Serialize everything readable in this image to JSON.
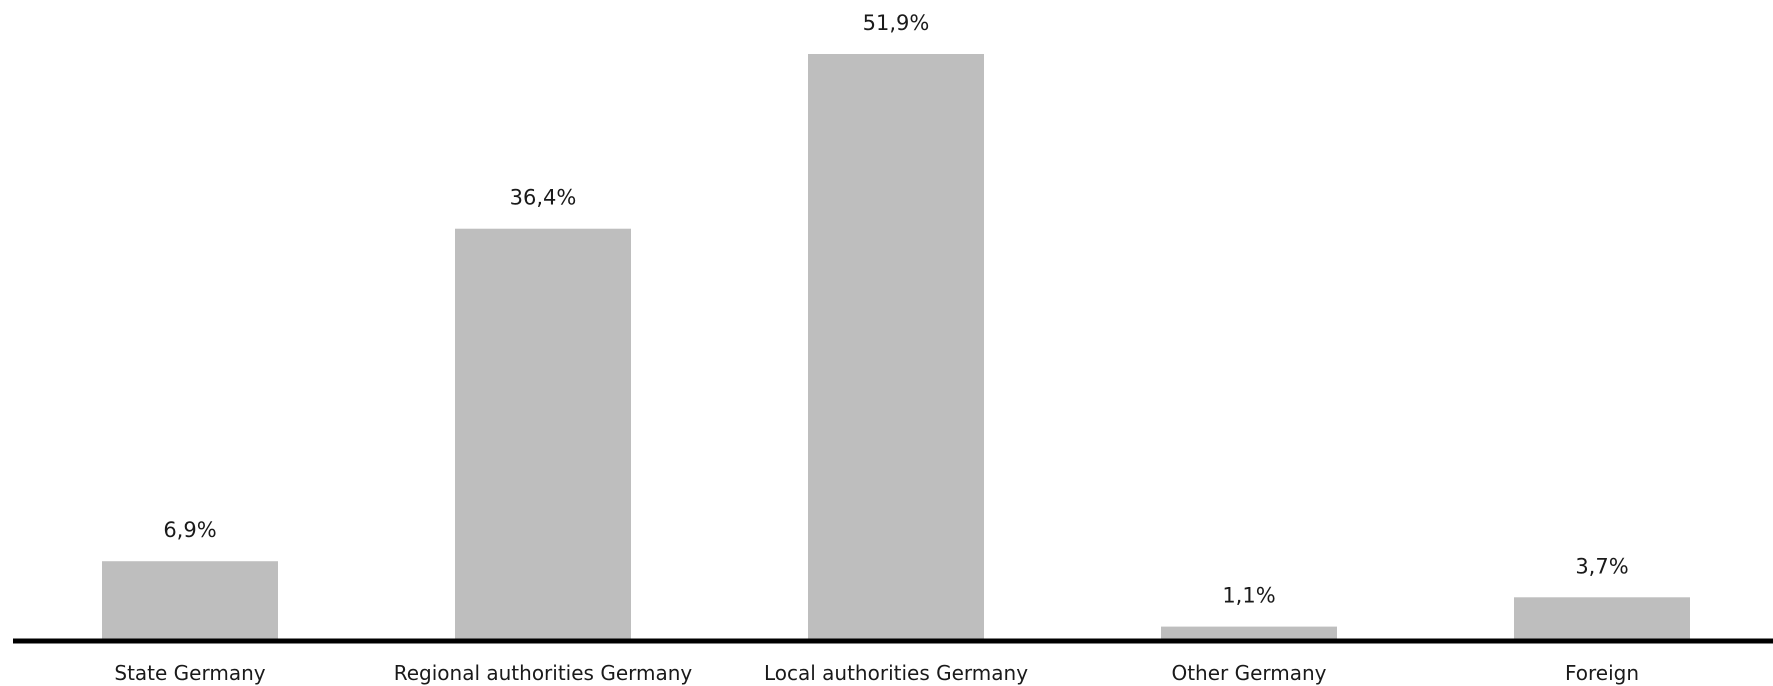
{
  "chart_data": {
    "type": "bar",
    "categories": [
      "State Germany",
      "Regional authorities Germany",
      "Local authorities Germany",
      "Other Germany",
      "Foreign"
    ],
    "values": [
      6.9,
      36.4,
      51.9,
      1.1,
      3.7
    ],
    "value_labels": [
      "6,9%",
      "36,4%",
      "51,9%",
      "1,1%",
      "3,7%"
    ],
    "unit": "%",
    "title": "",
    "xlabel": "",
    "ylabel": "",
    "ylim": [
      0,
      51.9
    ],
    "grid": false,
    "legend": "none",
    "colors": {
      "bar": "#bebebe",
      "axis": "#000000",
      "text": "#1a1a1a"
    }
  }
}
